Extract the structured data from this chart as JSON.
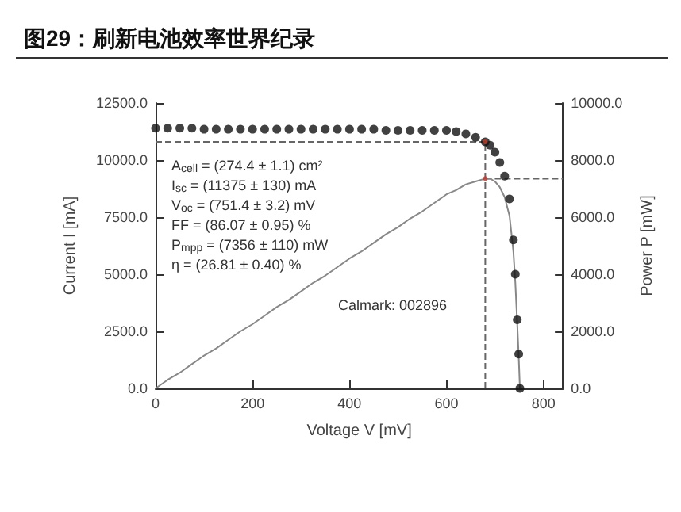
{
  "chart_data": {
    "type": "scatter",
    "title": "图29：刷新电池效率世界纪录",
    "xlabel": "Voltage V [mV]",
    "ylabel": "Current I [mA]",
    "y2label": "Power P [mW]",
    "x": [
      0,
      25,
      50,
      75,
      100,
      125,
      150,
      175,
      200,
      225,
      250,
      275,
      300,
      325,
      350,
      375,
      400,
      425,
      450,
      475,
      500,
      525,
      550,
      575,
      600,
      620,
      640,
      660,
      680,
      690,
      700,
      710,
      720,
      730,
      738,
      742,
      746,
      749,
      751.4
    ],
    "series": [
      {
        "color": "#111111",
        "marker": "circle",
        "values": [
          11400,
          11400,
          11400,
          11400,
          11350,
          11350,
          11350,
          11350,
          11350,
          11350,
          11350,
          11350,
          11350,
          11350,
          11350,
          11350,
          11350,
          11350,
          11350,
          11300,
          11300,
          11300,
          11300,
          11300,
          11300,
          11250,
          11150,
          11000,
          10800,
          10650,
          10350,
          9900,
          9300,
          8300,
          6500,
          5000,
          3000,
          1500,
          0
        ]
      },
      {
        "type": "line",
        "color": "#888888",
        "marker": "none",
        "axis": "y2",
        "values": [
          0,
          300,
          550,
          850,
          1150,
          1400,
          1700,
          2000,
          2250,
          2550,
          2850,
          3100,
          3400,
          3700,
          3950,
          4250,
          4550,
          4800,
          5100,
          5400,
          5650,
          5950,
          6200,
          6500,
          6800,
          6950,
          7150,
          7250,
          7350,
          7350,
          7250,
          7050,
          6700,
          6050,
          4800,
          3700,
          2250,
          1100,
          0
        ]
      },
      {
        "color": "#c0392b",
        "marker": "circle",
        "x": [
          680
        ],
        "values": [
          10800
        ]
      },
      {
        "color": "#c0392b",
        "marker": "circle",
        "axis": "y2",
        "x": [
          680
        ],
        "values": [
          7350
        ]
      }
    ],
    "xlim": [
      0,
      840
    ],
    "xticks": [
      0,
      200,
      400,
      600,
      800
    ],
    "ylim": [
      0,
      12500
    ],
    "yticks": [
      {
        "value": 0,
        "label": "0.0"
      },
      {
        "value": 2500,
        "label": "2500.0"
      },
      {
        "value": 5000,
        "label": "5000.0"
      },
      {
        "value": 7500,
        "label": "7500.0"
      },
      {
        "value": 10000,
        "label": "10000.0"
      },
      {
        "value": 12500,
        "label": "12500.0"
      }
    ],
    "y2lim": [
      0,
      10000
    ],
    "y2ticks": [
      {
        "value": 0,
        "label": "0.0"
      },
      {
        "value": 2000,
        "label": "2000.0"
      },
      {
        "value": 4000,
        "label": "4000.0"
      },
      {
        "value": 6000,
        "label": "6000.0"
      },
      {
        "value": 8000,
        "label": "8000.0"
      },
      {
        "value": 10000,
        "label": "10000.0"
      }
    ],
    "ref_lines": [
      {
        "axis": "x",
        "value": 680,
        "line_style": "dashed",
        "color": "#666666"
      },
      {
        "axis": "y",
        "value": 10800,
        "line_style": "dashed",
        "color": "#666666"
      },
      {
        "axis": "y2",
        "value": 7350,
        "line_style": "dashed",
        "color": "#666666"
      }
    ],
    "grid": false,
    "annotations": [
      "A$_{cell}$ = (274.4 ± 1.1) cm²",
      "I$_{sc}$ = (11375 ± 130) mA",
      "V$_{oc}$ = (751.4 ± 3.2) mV",
      "FF = (86.07 ± 0.95) %",
      "P$_{mpp}$ = (7356 ± 110) mW",
      "η = (26.81 ± 0.40) %",
      "Calmark: 002896"
    ]
  }
}
